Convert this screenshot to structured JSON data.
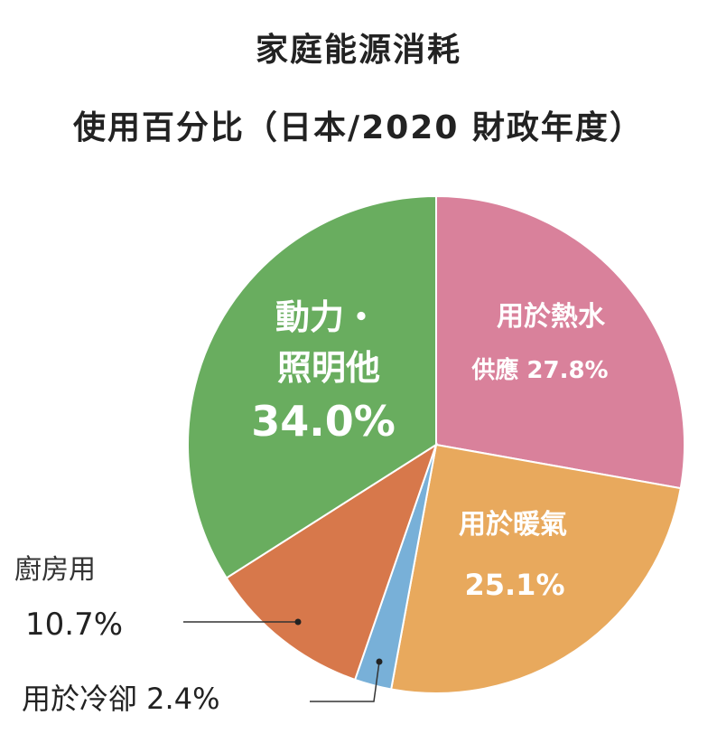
{
  "chart_data": {
    "type": "pie",
    "title": "家庭能源消耗",
    "subtitle": "使用百分比（日本/2020 財政年度）",
    "slices": [
      {
        "line1": "用於熱水",
        "line2": "供應 27.8%",
        "value": 27.8,
        "color": "#d9819b"
      },
      {
        "line1": "用於暖氣",
        "line2": "25.1%",
        "value": 25.1,
        "color": "#e8a95d"
      },
      {
        "line1": "用於冷卻 2.4%",
        "line2": "",
        "value": 2.4,
        "color": "#78b0d8"
      },
      {
        "line1": "廚房用",
        "line2": "10.7%",
        "value": 10.7,
        "color": "#d7784b"
      },
      {
        "line1": "動力・",
        "line2": "照明他",
        "line3": "34.0%",
        "value": 34.0,
        "color": "#69ad5f"
      }
    ]
  }
}
